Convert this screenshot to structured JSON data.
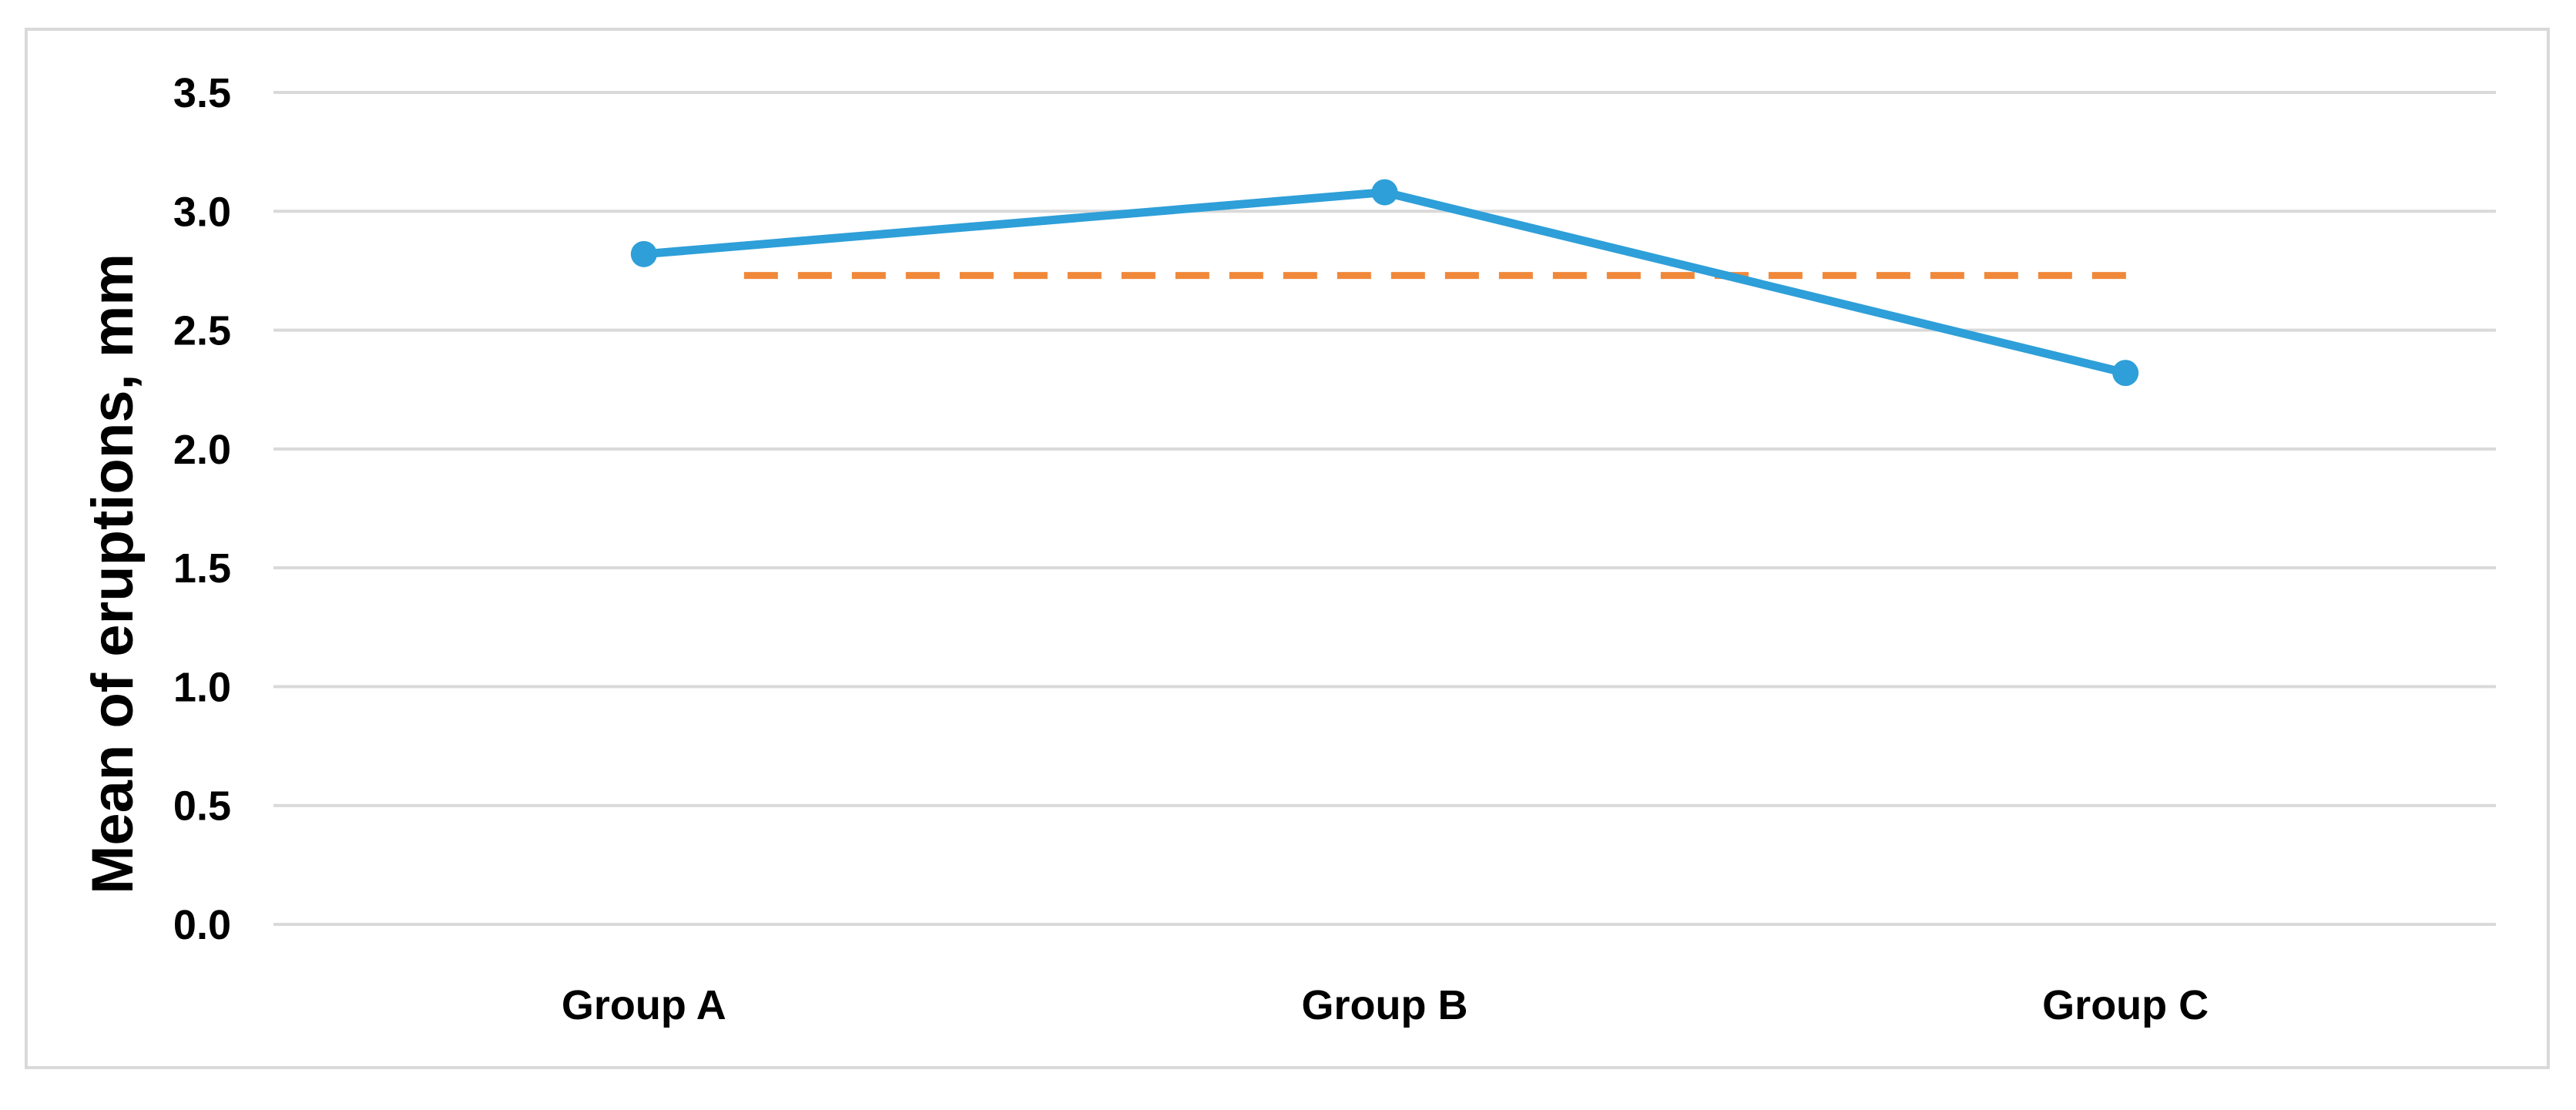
{
  "chart_data": {
    "type": "line",
    "title": "",
    "xlabel": "",
    "ylabel": "Mean of eruptions, mm",
    "categories": [
      "Group A",
      "Group B",
      "Group C"
    ],
    "series": [
      {
        "values": [
          2.82,
          3.08,
          2.32
        ],
        "color": "#2e9fd8",
        "style": "solid",
        "markers": true
      }
    ],
    "reference_line": {
      "value": 2.73,
      "color": "#f0883a",
      "style": "dashed"
    },
    "ylim": [
      0,
      3.5
    ],
    "yticks": [
      "0.0",
      "0.5",
      "1.0",
      "1.5",
      "2.0",
      "2.5",
      "3.0",
      "3.5"
    ],
    "grid": true,
    "legend": "none"
  }
}
